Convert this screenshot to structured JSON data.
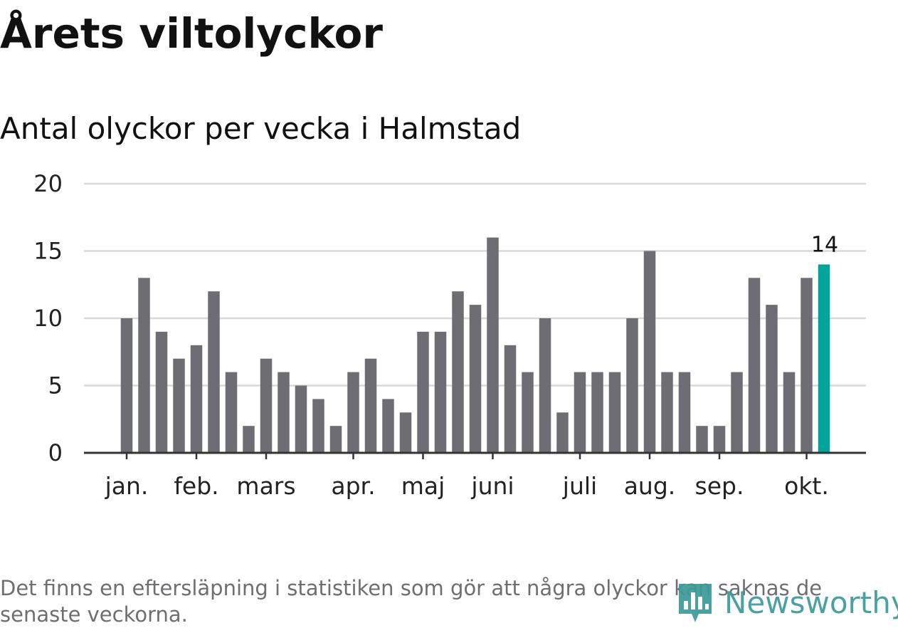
{
  "header": {
    "title": "Årets viltolyckor",
    "subtitle": "Antal olyckor per vecka i Halmstad"
  },
  "footnote": "Det finns en eftersläpning i statistiken som gör att några olyckor kan saknas de senaste veckorna.",
  "logo": {
    "text": "Newsworthy",
    "icon": "bar-chart-icon",
    "color": "#3a9b98"
  },
  "chart_data": {
    "type": "bar",
    "xlabel": "",
    "ylabel": "",
    "ylim": [
      0,
      20
    ],
    "yticks": [
      0,
      5,
      10,
      15,
      20
    ],
    "grid": true,
    "x_tick_labels": [
      {
        "label": "jan.",
        "week": 1
      },
      {
        "label": "feb.",
        "week": 5
      },
      {
        "label": "mars",
        "week": 9
      },
      {
        "label": "apr.",
        "week": 14
      },
      {
        "label": "maj",
        "week": 18
      },
      {
        "label": "juni",
        "week": 22
      },
      {
        "label": "juli",
        "week": 27
      },
      {
        "label": "aug.",
        "week": 31
      },
      {
        "label": "sep.",
        "week": 35
      },
      {
        "label": "okt.",
        "week": 40
      }
    ],
    "series": [
      {
        "values": [
          10,
          13,
          9,
          7,
          8,
          12,
          6,
          2,
          7,
          6,
          5,
          4,
          2,
          6,
          7,
          4,
          3,
          9,
          9,
          12,
          11,
          16,
          8,
          6,
          10,
          3,
          6,
          6,
          6,
          10,
          15,
          6,
          6,
          2,
          2,
          6,
          13,
          11,
          6,
          13,
          14
        ]
      }
    ],
    "highlight": {
      "index": 40,
      "label": "14"
    },
    "colors": {
      "bar": "#6e6d73",
      "highlight": "#00a49a",
      "grid": "#d9d9d9",
      "axis": "#333333",
      "tick_text": "#222222"
    }
  }
}
